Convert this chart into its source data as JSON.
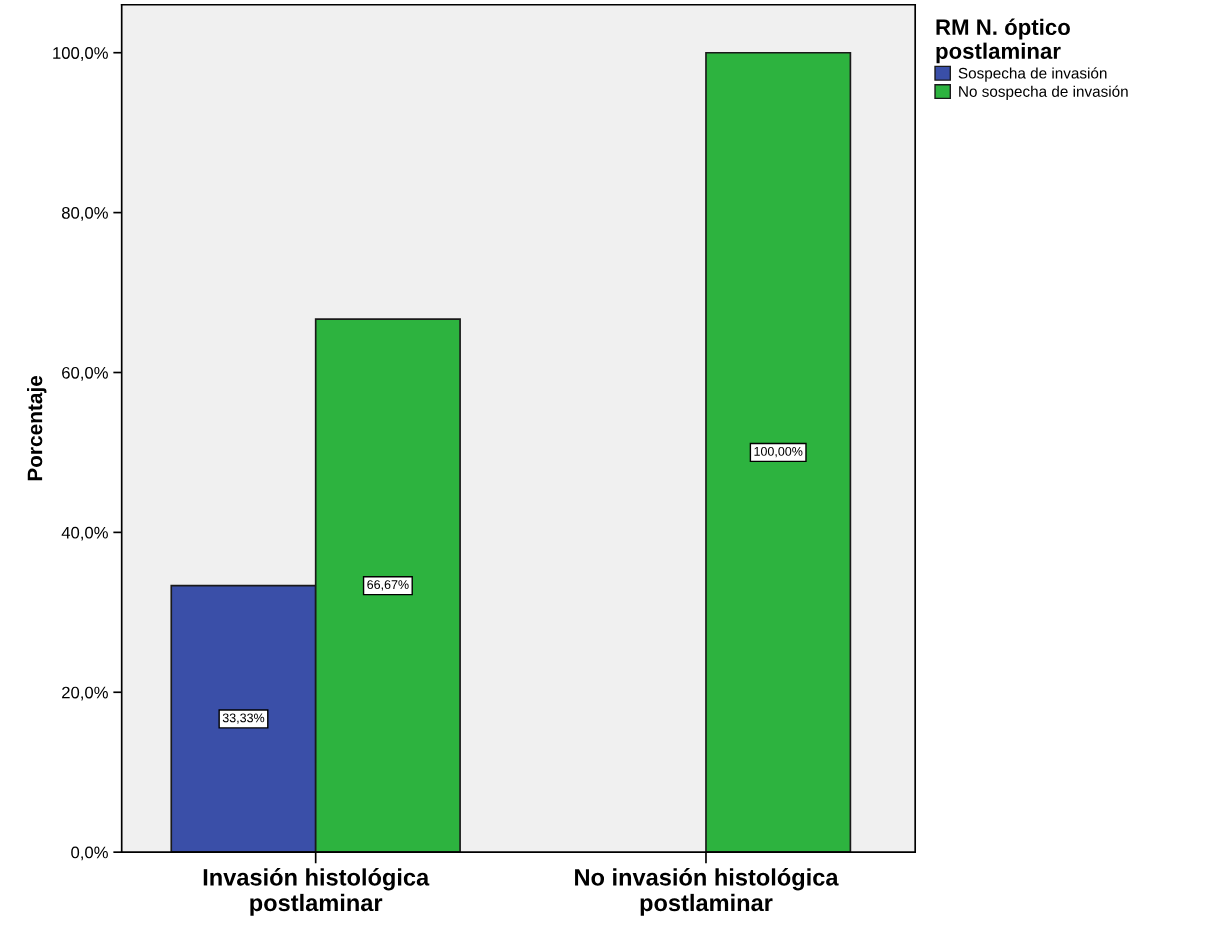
{
  "chart_data": {
    "type": "bar",
    "ylabel": "Porcentaje",
    "legend_title": "RM N. óptico\npostlaminar",
    "categories": [
      "Invasión histológica\npostlaminar",
      "No invasión histológica\npostlaminar"
    ],
    "series": [
      {
        "name": "Sospecha de invasión",
        "color": "#3a4fa8",
        "values": [
          33.33,
          null
        ],
        "value_labels": [
          "33,33%",
          null
        ]
      },
      {
        "name": "No sospecha de invasión",
        "color": "#2db33f",
        "values": [
          66.67,
          100
        ],
        "value_labels": [
          "66,67%",
          "100,00%"
        ]
      }
    ],
    "ylim": [
      0,
      106
    ],
    "yticks": [
      {
        "value": 0,
        "label": "0,0%"
      },
      {
        "value": 20,
        "label": "20,0%"
      },
      {
        "value": 40,
        "label": "40,0%"
      },
      {
        "value": 60,
        "label": "60,0%"
      },
      {
        "value": 80,
        "label": "80,0%"
      },
      {
        "value": 100,
        "label": "100,0%"
      }
    ],
    "grid": false,
    "legend": "top right"
  }
}
